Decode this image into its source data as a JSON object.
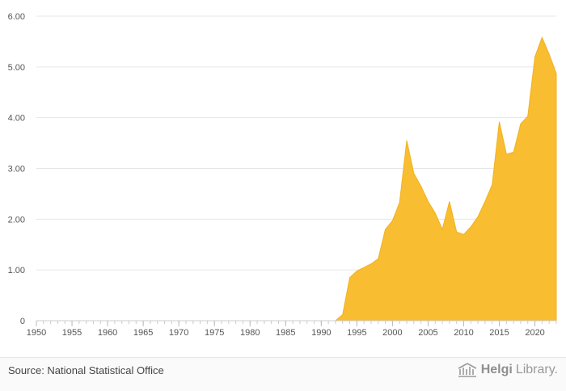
{
  "chart_data": {
    "type": "area",
    "title": "",
    "xlabel": "",
    "ylabel": "",
    "color": "#F9BD31",
    "grid": true,
    "xlim": [
      1950,
      2023
    ],
    "ylim": [
      0,
      6
    ],
    "y_ticks": [
      "0",
      "1.00",
      "2.00",
      "3.00",
      "4.00",
      "5.00",
      "6.00"
    ],
    "x_ticks": [
      "1950",
      "1955",
      "1960",
      "1965",
      "1970",
      "1975",
      "1980",
      "1985",
      "1990",
      "1995",
      "2000",
      "2005",
      "2010",
      "2015",
      "2020"
    ],
    "x": [
      1950,
      1951,
      1952,
      1953,
      1954,
      1955,
      1956,
      1957,
      1958,
      1959,
      1960,
      1961,
      1962,
      1963,
      1964,
      1965,
      1966,
      1967,
      1968,
      1969,
      1970,
      1971,
      1972,
      1973,
      1974,
      1975,
      1976,
      1977,
      1978,
      1979,
      1980,
      1981,
      1982,
      1983,
      1984,
      1985,
      1986,
      1987,
      1988,
      1989,
      1990,
      1991,
      1992,
      1993,
      1994,
      1995,
      1996,
      1997,
      1998,
      1999,
      2000,
      2001,
      2002,
      2003,
      2004,
      2005,
      2006,
      2007,
      2008,
      2009,
      2010,
      2011,
      2012,
      2013,
      2014,
      2015,
      2016,
      2017,
      2018,
      2019,
      2020,
      2021,
      2022,
      2023
    ],
    "values": [
      0,
      0,
      0,
      0,
      0,
      0,
      0,
      0,
      0,
      0,
      0,
      0,
      0,
      0,
      0,
      0,
      0,
      0,
      0,
      0,
      0,
      0,
      0,
      0,
      0,
      0,
      0,
      0,
      0,
      0,
      0,
      0,
      0,
      0,
      0,
      0,
      0,
      0,
      0,
      0,
      0,
      0,
      0,
      0.12,
      0.85,
      0.98,
      1.05,
      1.12,
      1.22,
      1.8,
      1.97,
      2.33,
      3.55,
      2.9,
      2.65,
      2.35,
      2.12,
      1.8,
      2.35,
      1.75,
      1.7,
      1.85,
      2.05,
      2.35,
      2.68,
      3.92,
      3.28,
      3.32,
      3.88,
      4.03,
      5.2,
      5.58,
      5.25,
      4.87
    ]
  },
  "footer": {
    "source": "Source: National Statistical Office",
    "brand_part1": "Helgi",
    "brand_part2": "Library."
  }
}
